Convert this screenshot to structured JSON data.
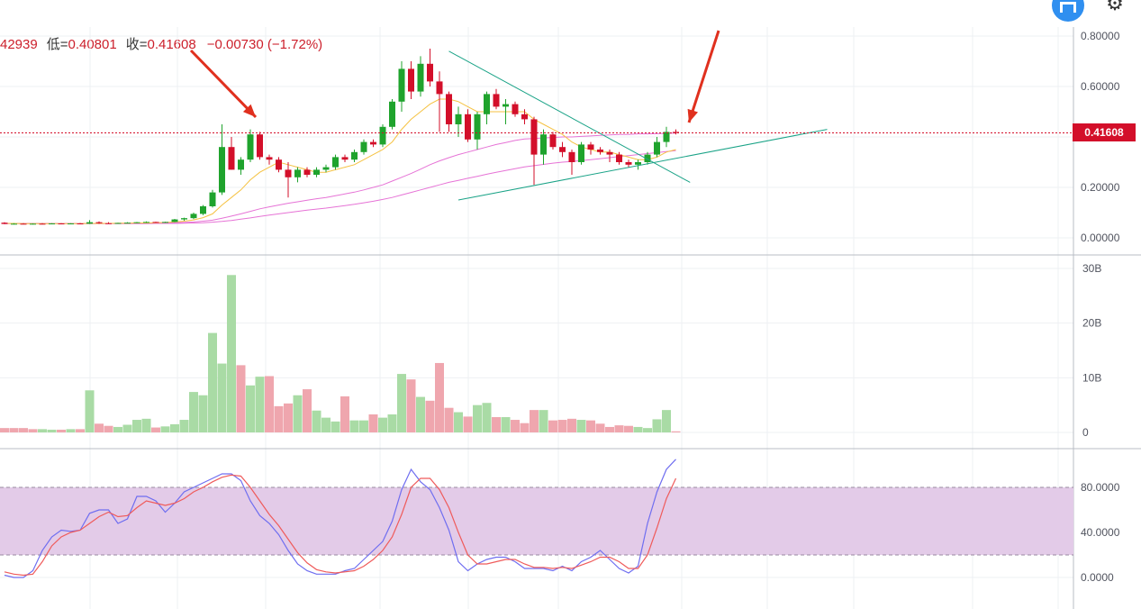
{
  "ohlc": {
    "high": "42939",
    "low_label": "低=",
    "low": "0.40801",
    "close_label": "收=",
    "close": "0.41608",
    "change": "−0.00730 (−1.72%)"
  },
  "current_price_tag": "0.41608",
  "icons": {
    "logo": "m-logo-icon",
    "settings": "gear-icon"
  },
  "colors": {
    "up": "#1fa32d",
    "down": "#d30f2a",
    "vol_up": "#a9dba5",
    "vol_down": "#efa6ae",
    "ma_short": "#f5c242",
    "ma_long": "#e673d6",
    "trend": "#1aa387",
    "k_line": "#6f6ef0",
    "d_line": "#ef5b5b",
    "stoch_band": "#e3cbe8",
    "arrow": "#e0301e"
  },
  "chart_data": [
    {
      "type": "candlestick",
      "y_ticks": [
        "0.80000",
        "0.60000",
        "0.40000",
        "0.20000",
        "0.00000"
      ],
      "ylim": [
        0,
        0.82
      ],
      "last_price": 0.41608,
      "candles": [
        [
          0.06,
          0.062,
          0.054,
          0.055
        ],
        [
          0.055,
          0.058,
          0.053,
          0.056
        ],
        [
          0.056,
          0.058,
          0.054,
          0.055
        ],
        [
          0.055,
          0.057,
          0.053,
          0.056
        ],
        [
          0.056,
          0.058,
          0.054,
          0.055
        ],
        [
          0.055,
          0.058,
          0.054,
          0.057
        ],
        [
          0.057,
          0.058,
          0.055,
          0.056
        ],
        [
          0.056,
          0.058,
          0.055,
          0.057
        ],
        [
          0.057,
          0.059,
          0.055,
          0.056
        ],
        [
          0.056,
          0.07,
          0.055,
          0.062
        ],
        [
          0.062,
          0.065,
          0.056,
          0.058
        ],
        [
          0.058,
          0.062,
          0.056,
          0.057
        ],
        [
          0.057,
          0.06,
          0.056,
          0.059
        ],
        [
          0.059,
          0.062,
          0.057,
          0.06
        ],
        [
          0.06,
          0.063,
          0.058,
          0.062
        ],
        [
          0.062,
          0.065,
          0.06,
          0.063
        ],
        [
          0.063,
          0.064,
          0.06,
          0.061
        ],
        [
          0.061,
          0.064,
          0.06,
          0.063
        ],
        [
          0.063,
          0.075,
          0.062,
          0.073
        ],
        [
          0.073,
          0.08,
          0.068,
          0.078
        ],
        [
          0.078,
          0.1,
          0.074,
          0.095
        ],
        [
          0.095,
          0.13,
          0.09,
          0.125
        ],
        [
          0.125,
          0.19,
          0.12,
          0.18
        ],
        [
          0.18,
          0.45,
          0.17,
          0.36
        ],
        [
          0.36,
          0.4,
          0.27,
          0.27
        ],
        [
          0.27,
          0.32,
          0.25,
          0.31
        ],
        [
          0.31,
          0.43,
          0.3,
          0.41
        ],
        [
          0.41,
          0.42,
          0.31,
          0.32
        ],
        [
          0.32,
          0.33,
          0.29,
          0.31
        ],
        [
          0.31,
          0.32,
          0.26,
          0.27
        ],
        [
          0.27,
          0.3,
          0.16,
          0.24
        ],
        [
          0.24,
          0.28,
          0.22,
          0.27
        ],
        [
          0.27,
          0.28,
          0.24,
          0.25
        ],
        [
          0.25,
          0.28,
          0.24,
          0.27
        ],
        [
          0.27,
          0.29,
          0.26,
          0.28
        ],
        [
          0.28,
          0.33,
          0.27,
          0.32
        ],
        [
          0.32,
          0.33,
          0.3,
          0.31
        ],
        [
          0.31,
          0.35,
          0.3,
          0.34
        ],
        [
          0.34,
          0.39,
          0.33,
          0.38
        ],
        [
          0.38,
          0.39,
          0.36,
          0.37
        ],
        [
          0.37,
          0.45,
          0.36,
          0.44
        ],
        [
          0.44,
          0.55,
          0.43,
          0.54
        ],
        [
          0.54,
          0.7,
          0.5,
          0.67
        ],
        [
          0.67,
          0.7,
          0.55,
          0.58
        ],
        [
          0.58,
          0.72,
          0.56,
          0.69
        ],
        [
          0.69,
          0.75,
          0.6,
          0.62
        ],
        [
          0.62,
          0.66,
          0.42,
          0.57
        ],
        [
          0.57,
          0.58,
          0.42,
          0.45
        ],
        [
          0.45,
          0.52,
          0.4,
          0.49
        ],
        [
          0.49,
          0.51,
          0.38,
          0.39
        ],
        [
          0.39,
          0.5,
          0.35,
          0.49
        ],
        [
          0.49,
          0.58,
          0.45,
          0.57
        ],
        [
          0.57,
          0.59,
          0.51,
          0.52
        ],
        [
          0.52,
          0.55,
          0.45,
          0.53
        ],
        [
          0.53,
          0.54,
          0.48,
          0.49
        ],
        [
          0.49,
          0.51,
          0.45,
          0.47
        ],
        [
          0.47,
          0.48,
          0.21,
          0.33
        ],
        [
          0.33,
          0.43,
          0.29,
          0.41
        ],
        [
          0.41,
          0.42,
          0.35,
          0.36
        ],
        [
          0.36,
          0.38,
          0.32,
          0.34
        ],
        [
          0.34,
          0.35,
          0.25,
          0.3
        ],
        [
          0.3,
          0.38,
          0.29,
          0.37
        ],
        [
          0.37,
          0.38,
          0.33,
          0.35
        ],
        [
          0.35,
          0.36,
          0.33,
          0.34
        ],
        [
          0.34,
          0.35,
          0.3,
          0.33
        ],
        [
          0.33,
          0.34,
          0.29,
          0.3
        ],
        [
          0.3,
          0.31,
          0.28,
          0.29
        ],
        [
          0.29,
          0.31,
          0.27,
          0.3
        ],
        [
          0.3,
          0.34,
          0.29,
          0.33
        ],
        [
          0.33,
          0.4,
          0.32,
          0.38
        ],
        [
          0.38,
          0.44,
          0.36,
          0.42
        ],
        [
          0.42,
          0.43,
          0.41,
          0.416
        ]
      ],
      "ma_short": [
        0.057,
        0.057,
        0.056,
        0.056,
        0.056,
        0.056,
        0.056,
        0.056,
        0.056,
        0.057,
        0.057,
        0.057,
        0.058,
        0.058,
        0.059,
        0.059,
        0.06,
        0.061,
        0.063,
        0.066,
        0.071,
        0.08,
        0.095,
        0.13,
        0.16,
        0.19,
        0.23,
        0.26,
        0.28,
        0.3,
        0.29,
        0.28,
        0.27,
        0.26,
        0.26,
        0.27,
        0.28,
        0.29,
        0.31,
        0.33,
        0.35,
        0.38,
        0.43,
        0.47,
        0.5,
        0.53,
        0.55,
        0.55,
        0.54,
        0.52,
        0.5,
        0.5,
        0.5,
        0.5,
        0.5,
        0.5,
        0.47,
        0.45,
        0.43,
        0.41,
        0.38,
        0.36,
        0.35,
        0.34,
        0.34,
        0.33,
        0.32,
        0.31,
        0.31,
        0.32,
        0.34,
        0.35
      ],
      "ma_long": [
        0.057,
        0.057,
        0.057,
        0.057,
        0.057,
        0.057,
        0.057,
        0.057,
        0.057,
        0.057,
        0.057,
        0.057,
        0.057,
        0.058,
        0.058,
        0.058,
        0.059,
        0.059,
        0.06,
        0.061,
        0.063,
        0.066,
        0.07,
        0.078,
        0.086,
        0.095,
        0.105,
        0.115,
        0.123,
        0.13,
        0.137,
        0.143,
        0.149,
        0.155,
        0.16,
        0.167,
        0.174,
        0.181,
        0.19,
        0.2,
        0.21,
        0.225,
        0.24,
        0.255,
        0.272,
        0.29,
        0.305,
        0.318,
        0.33,
        0.34,
        0.35,
        0.36,
        0.37,
        0.378,
        0.386,
        0.392,
        0.394,
        0.396,
        0.398,
        0.4,
        0.4,
        0.402,
        0.404,
        0.406,
        0.408,
        0.41,
        0.41,
        0.412,
        0.412,
        0.413,
        0.414,
        0.415
      ],
      "ma_long2": [
        0.056,
        0.056,
        0.056,
        0.056,
        0.056,
        0.056,
        0.056,
        0.056,
        0.056,
        0.056,
        0.056,
        0.056,
        0.056,
        0.056,
        0.056,
        0.056,
        0.057,
        0.057,
        0.057,
        0.058,
        0.059,
        0.06,
        0.062,
        0.065,
        0.069,
        0.074,
        0.079,
        0.085,
        0.09,
        0.095,
        0.1,
        0.105,
        0.11,
        0.114,
        0.118,
        0.123,
        0.128,
        0.133,
        0.139,
        0.145,
        0.152,
        0.16,
        0.17,
        0.18,
        0.19,
        0.2,
        0.21,
        0.22,
        0.228,
        0.236,
        0.244,
        0.252,
        0.26,
        0.267,
        0.274,
        0.281,
        0.286,
        0.291,
        0.296,
        0.3,
        0.303,
        0.306,
        0.31,
        0.314,
        0.318,
        0.322,
        0.326,
        0.33,
        0.334,
        0.338,
        0.342,
        0.346
      ]
    },
    {
      "type": "bar",
      "y_ticks": [
        "30B",
        "20B",
        "10B",
        "0"
      ],
      "ylim": [
        0,
        30
      ],
      "values": [
        0.8,
        0.8,
        0.8,
        0.6,
        0.6,
        0.5,
        0.5,
        0.6,
        0.6,
        7.7,
        1.6,
        1.2,
        1.0,
        1.4,
        2.3,
        2.5,
        0.9,
        1.1,
        1.5,
        2.3,
        7.4,
        6.8,
        18.2,
        12.6,
        28.8,
        12.3,
        8.6,
        10.2,
        10.3,
        4.8,
        5.3,
        6.8,
        7.9,
        4.0,
        2.7,
        2.0,
        6.6,
        2.2,
        2.2,
        3.3,
        2.7,
        3.3,
        10.7,
        9.7,
        6.5,
        5.8,
        12.7,
        4.5,
        3.7,
        2.9,
        5.0,
        5.4,
        2.8,
        2.8,
        2.3,
        1.7,
        4.1,
        4.1,
        2.2,
        2.3,
        2.5,
        2.3,
        2.2,
        1.6,
        1.0,
        1.3,
        1.2,
        1.0,
        0.8,
        2.4,
        4.1,
        0.2
      ],
      "ups": [
        0,
        0,
        0,
        0,
        1,
        1,
        0,
        1,
        0,
        1,
        0,
        0,
        1,
        1,
        1,
        1,
        0,
        1,
        1,
        1,
        1,
        1,
        1,
        1,
        1,
        0,
        1,
        1,
        0,
        0,
        0,
        1,
        0,
        1,
        1,
        1,
        0,
        1,
        1,
        0,
        1,
        1,
        1,
        0,
        1,
        0,
        0,
        0,
        1,
        0,
        1,
        1,
        0,
        1,
        0,
        0,
        0,
        1,
        0,
        0,
        0,
        1,
        0,
        0,
        0,
        0,
        0,
        1,
        1,
        1,
        1,
        0
      ]
    },
    {
      "type": "line",
      "y_ticks": [
        "80.0000",
        "40.0000",
        "0.0000"
      ],
      "ylim": [
        -4,
        100
      ],
      "band": [
        20,
        80
      ],
      "series": [
        {
          "values": [
            2,
            0,
            0,
            6,
            24,
            36,
            42,
            41,
            42,
            57,
            60,
            60,
            48,
            52,
            72,
            72,
            68,
            58,
            66,
            76,
            80,
            84,
            88,
            92,
            92,
            86,
            68,
            55,
            48,
            38,
            24,
            12,
            6,
            3,
            3,
            3,
            6,
            8,
            16,
            24,
            32,
            50,
            78,
            96,
            85,
            78,
            62,
            42,
            14,
            6,
            12,
            16,
            18,
            18,
            14,
            8,
            8,
            8,
            6,
            10,
            6,
            14,
            18,
            24,
            16,
            8,
            4,
            10,
            48,
            76,
            96,
            105
          ]
        },
        {
          "values": [
            5,
            3,
            2,
            3,
            14,
            28,
            36,
            40,
            42,
            48,
            54,
            58,
            54,
            55,
            62,
            68,
            66,
            64,
            66,
            70,
            76,
            80,
            85,
            89,
            91,
            90,
            80,
            68,
            56,
            46,
            34,
            22,
            13,
            7,
            5,
            4,
            5,
            6,
            10,
            16,
            24,
            36,
            56,
            80,
            88,
            88,
            78,
            62,
            40,
            20,
            12,
            12,
            14,
            16,
            16,
            12,
            9,
            9,
            8,
            9,
            8,
            11,
            14,
            18,
            18,
            14,
            8,
            8,
            20,
            44,
            70,
            88
          ]
        }
      ]
    }
  ]
}
